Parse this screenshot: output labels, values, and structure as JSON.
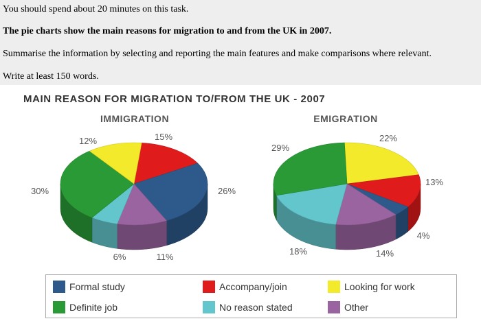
{
  "prompt": {
    "line1": "You should spend about 20 minutes on this task.",
    "line2": "The pie charts show the main reasons for migration to and from the UK in 2007.",
    "line3": "Summarise the information by selecting and reporting the main features and make comparisons where relevant.",
    "line4": "Write at least 150 words."
  },
  "chart_title": "MAIN REASON FOR MIGRATION TO/FROM THE UK - 2007",
  "colors": {
    "formal_study": "#2d5a8a",
    "accompany_join": "#e01b1b",
    "looking_for_work": "#f2ea2a",
    "definite_job": "#2a9a36",
    "no_reason_stated": "#62c6cc",
    "other": "#9a64a0"
  },
  "legend": [
    {
      "label": "Formal study",
      "color": "#2d5a8a"
    },
    {
      "label": "Accompany/join",
      "color": "#e01b1b"
    },
    {
      "label": "Looking for work",
      "color": "#f2ea2a"
    },
    {
      "label": "Definite job",
      "color": "#2a9a36"
    },
    {
      "label": "No reason stated",
      "color": "#62c6cc"
    },
    {
      "label": "Other",
      "color": "#9a64a0"
    }
  ],
  "chart_data": [
    {
      "type": "pie",
      "title": "IMMIGRATION",
      "slices": [
        {
          "category": "Accompany/join",
          "value": 15,
          "label": "15%",
          "color": "#e01b1b"
        },
        {
          "category": "Formal study",
          "value": 26,
          "label": "26%",
          "color": "#2d5a8a"
        },
        {
          "category": "Other",
          "value": 11,
          "label": "11%",
          "color": "#9a64a0"
        },
        {
          "category": "No reason stated",
          "value": 6,
          "label": "6%",
          "color": "#62c6cc"
        },
        {
          "category": "Definite job",
          "value": 30,
          "label": "30%",
          "color": "#2a9a36"
        },
        {
          "category": "Looking for work",
          "value": 12,
          "label": "12%",
          "color": "#f2ea2a"
        }
      ]
    },
    {
      "type": "pie",
      "title": "EMIGRATION",
      "slices": [
        {
          "category": "Looking for work",
          "value": 22,
          "label": "22%",
          "color": "#f2ea2a"
        },
        {
          "category": "Accompany/join",
          "value": 13,
          "label": "13%",
          "color": "#e01b1b"
        },
        {
          "category": "Formal study",
          "value": 4,
          "label": "4%",
          "color": "#2d5a8a"
        },
        {
          "category": "Other",
          "value": 14,
          "label": "14%",
          "color": "#9a64a0"
        },
        {
          "category": "No reason stated",
          "value": 18,
          "label": "18%",
          "color": "#62c6cc"
        },
        {
          "category": "Definite job",
          "value": 29,
          "label": "29%",
          "color": "#2a9a36"
        }
      ]
    }
  ]
}
